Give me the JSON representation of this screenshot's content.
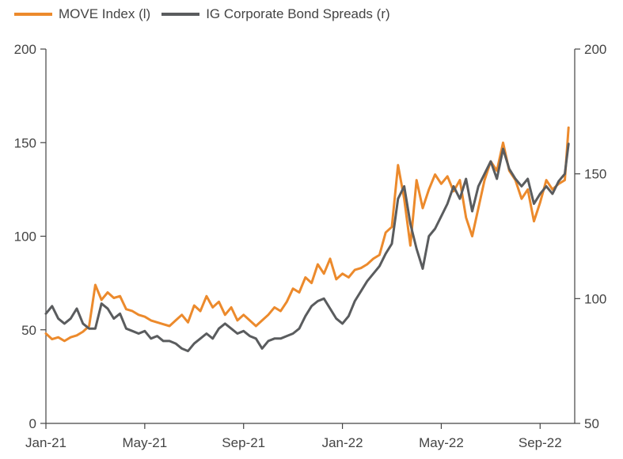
{
  "colors": {
    "move": "#ec8a2c",
    "ig": "#5a5c5e",
    "axis": "#444444"
  },
  "legend": [
    {
      "label": "MOVE Index (l)",
      "color": "#ec8a2c"
    },
    {
      "label": "IG Corporate Bond Spreads (r)",
      "color": "#5a5c5e"
    }
  ],
  "chart_data": {
    "type": "line",
    "x_ticks": [
      "Jan-21",
      "May-21",
      "Sep-21",
      "Jan-22",
      "May-22",
      "Sep-22"
    ],
    "x_tick_months": [
      0,
      4,
      8,
      12,
      16,
      20
    ],
    "xlim": [
      0,
      21.4
    ],
    "y_left": {
      "ticks": [
        "0",
        "50",
        "100",
        "150",
        "200"
      ],
      "tick_values": [
        0,
        50,
        100,
        150,
        200
      ],
      "lim": [
        0,
        200
      ]
    },
    "y_right": {
      "ticks": [
        "50",
        "100",
        "150",
        "200"
      ],
      "tick_values": [
        50,
        100,
        150,
        200
      ],
      "lim": [
        50,
        200
      ]
    },
    "grid": false,
    "legend_position": "top-left",
    "series": [
      {
        "name": "MOVE Index (l)",
        "axis": "left",
        "x": [
          0,
          0.25,
          0.5,
          0.75,
          1.0,
          1.25,
          1.5,
          1.75,
          2.0,
          2.25,
          2.5,
          2.75,
          3.0,
          3.25,
          3.5,
          3.75,
          4.0,
          4.25,
          4.5,
          4.75,
          5.0,
          5.25,
          5.5,
          5.75,
          6.0,
          6.25,
          6.5,
          6.75,
          7.0,
          7.25,
          7.5,
          7.75,
          8.0,
          8.25,
          8.5,
          8.75,
          9.0,
          9.25,
          9.5,
          9.75,
          10.0,
          10.25,
          10.5,
          10.75,
          11.0,
          11.25,
          11.5,
          11.75,
          12.0,
          12.25,
          12.5,
          12.75,
          13.0,
          13.25,
          13.5,
          13.75,
          14.0,
          14.25,
          14.5,
          14.75,
          15.0,
          15.25,
          15.5,
          15.75,
          16.0,
          16.25,
          16.5,
          16.75,
          17.0,
          17.25,
          17.5,
          17.75,
          18.0,
          18.25,
          18.5,
          18.75,
          19.0,
          19.25,
          19.5,
          19.75,
          20.0,
          20.25,
          20.5,
          20.75,
          21.0,
          21.15
        ],
        "y": [
          48,
          45,
          46,
          44,
          46,
          47,
          49,
          52,
          74,
          66,
          70,
          67,
          68,
          61,
          60,
          58,
          57,
          55,
          54,
          53,
          52,
          55,
          58,
          54,
          63,
          60,
          68,
          62,
          65,
          58,
          62,
          55,
          58,
          55,
          52,
          55,
          58,
          62,
          60,
          65,
          72,
          70,
          78,
          75,
          85,
          80,
          88,
          77,
          80,
          78,
          82,
          83,
          85,
          88,
          90,
          102,
          105,
          138,
          120,
          95,
          130,
          115,
          125,
          133,
          128,
          132,
          124,
          130,
          110,
          100,
          115,
          130,
          140,
          135,
          150,
          135,
          130,
          120,
          125,
          108,
          118,
          130,
          125,
          128,
          130,
          158
        ]
      },
      {
        "name": "IG Corporate Bond Spreads (r)",
        "axis": "right",
        "x": [
          0,
          0.25,
          0.5,
          0.75,
          1.0,
          1.25,
          1.5,
          1.75,
          2.0,
          2.25,
          2.5,
          2.75,
          3.0,
          3.25,
          3.5,
          3.75,
          4.0,
          4.25,
          4.5,
          4.75,
          5.0,
          5.25,
          5.5,
          5.75,
          6.0,
          6.25,
          6.5,
          6.75,
          7.0,
          7.25,
          7.5,
          7.75,
          8.0,
          8.25,
          8.5,
          8.75,
          9.0,
          9.25,
          9.5,
          9.75,
          10.0,
          10.25,
          10.5,
          10.75,
          11.0,
          11.25,
          11.5,
          11.75,
          12.0,
          12.25,
          12.5,
          12.75,
          13.0,
          13.25,
          13.5,
          13.75,
          14.0,
          14.25,
          14.5,
          14.75,
          15.0,
          15.25,
          15.5,
          15.75,
          16.0,
          16.25,
          16.5,
          16.75,
          17.0,
          17.25,
          17.5,
          17.75,
          18.0,
          18.25,
          18.5,
          18.75,
          19.0,
          19.25,
          19.5,
          19.75,
          20.0,
          20.25,
          20.5,
          20.75,
          21.0,
          21.15
        ],
        "y": [
          94,
          97,
          92,
          90,
          92,
          96,
          90,
          88,
          88,
          98,
          96,
          92,
          94,
          88,
          87,
          86,
          87,
          84,
          85,
          83,
          83,
          82,
          80,
          79,
          82,
          84,
          86,
          84,
          88,
          90,
          88,
          86,
          87,
          85,
          84,
          80,
          83,
          84,
          84,
          85,
          86,
          88,
          93,
          97,
          99,
          100,
          96,
          92,
          90,
          93,
          99,
          103,
          107,
          110,
          113,
          118,
          122,
          140,
          145,
          130,
          120,
          112,
          125,
          128,
          133,
          138,
          145,
          140,
          148,
          135,
          145,
          150,
          155,
          148,
          160,
          152,
          148,
          145,
          148,
          138,
          142,
          145,
          142,
          147,
          150,
          162
        ]
      }
    ]
  }
}
